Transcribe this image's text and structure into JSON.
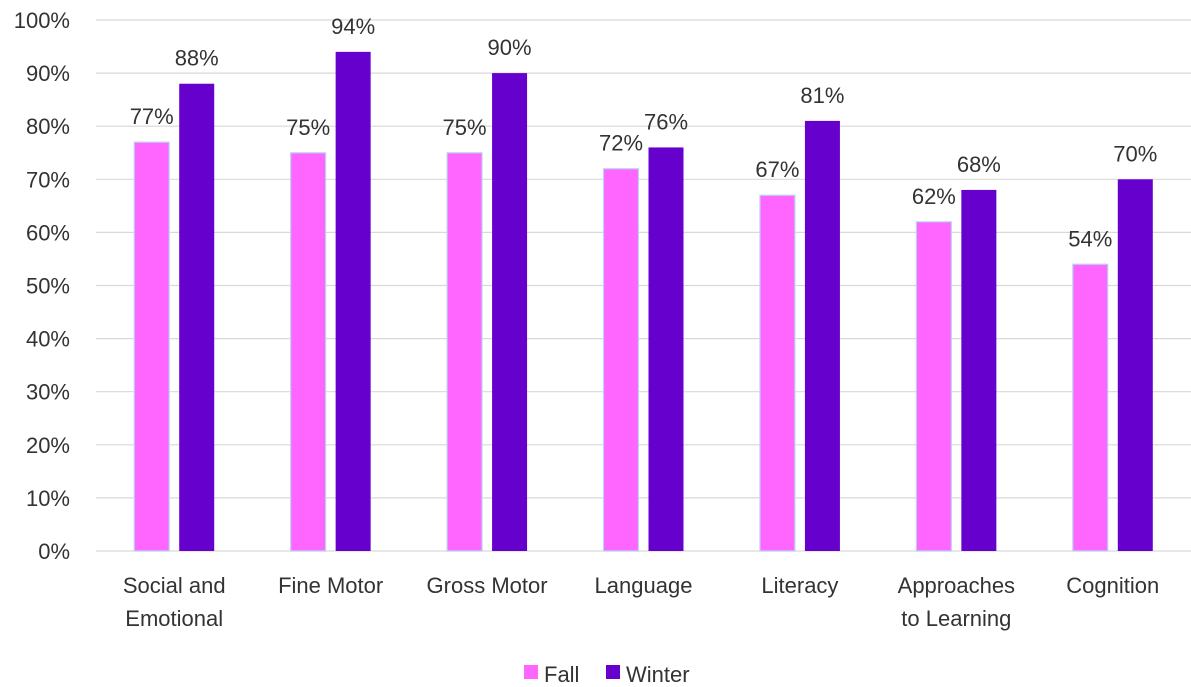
{
  "chart_data": {
    "type": "bar",
    "title": "",
    "xlabel": "",
    "ylabel": "",
    "ylim": [
      0,
      100
    ],
    "y_ticks": [
      "0%",
      "10%",
      "20%",
      "30%",
      "40%",
      "50%",
      "60%",
      "70%",
      "80%",
      "90%",
      "100%"
    ],
    "y_tick_values": [
      0,
      10,
      20,
      30,
      40,
      50,
      60,
      70,
      80,
      90,
      100
    ],
    "grid": true,
    "legend_position": "bottom-center",
    "categories": [
      [
        "Social and",
        "Emotional"
      ],
      [
        "Fine Motor"
      ],
      [
        "Gross Motor"
      ],
      [
        "Language"
      ],
      [
        "Literacy"
      ],
      [
        "Approaches",
        "to Learning"
      ],
      [
        "Cognition"
      ]
    ],
    "series": [
      {
        "name": "Fall",
        "color": "#ff66ff",
        "values": [
          77,
          75,
          75,
          72,
          67,
          62,
          54
        ],
        "labels": [
          "77%",
          "75%",
          "75%",
          "72%",
          "67%",
          "62%",
          "54%"
        ]
      },
      {
        "name": "Winter",
        "color": "#6600cc",
        "values": [
          88,
          94,
          90,
          76,
          81,
          68,
          70
        ],
        "labels": [
          "88%",
          "94%",
          "90%",
          "76%",
          "81%",
          "68%",
          "70%"
        ]
      }
    ]
  }
}
